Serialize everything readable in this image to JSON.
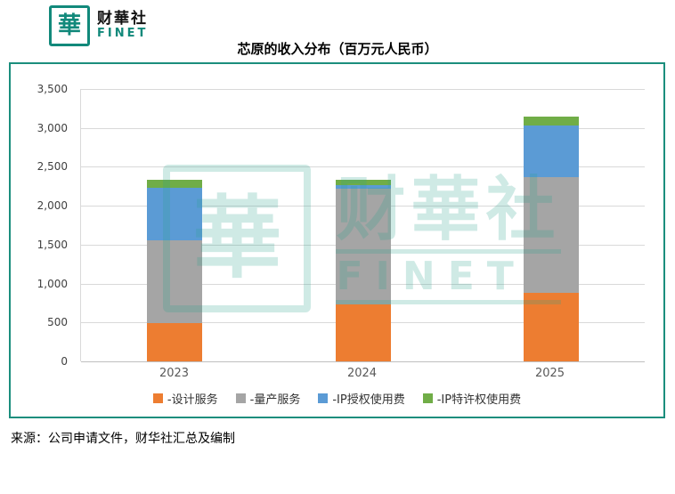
{
  "logo": {
    "glyph": "華",
    "name_cn": "财華社",
    "name_en": "FINET"
  },
  "title": "芯原的收入分布（百万元人民币）",
  "source": "来源：公司申请文件，财华社汇总及编制",
  "watermark": {
    "glyph": "華",
    "line_cn": "财華社",
    "line_en": "FINET"
  },
  "colors": {
    "brand": "#12897B",
    "frame_border": "#1b8e7d",
    "orange": "#ED7D31",
    "gray": "#A5A5A5",
    "blue": "#5B9BD5",
    "green": "#70AD47"
  },
  "chart_data": {
    "type": "bar",
    "stacked": true,
    "title": "芯原的收入分布（百万元人民币）",
    "categories": [
      "2023",
      "2024",
      "2025"
    ],
    "series": [
      {
        "name": "-设计服务",
        "color": "#ED7D31",
        "values": [
          490,
          730,
          880
        ]
      },
      {
        "name": "-量产服务",
        "color": "#A5A5A5",
        "values": [
          1070,
          1490,
          1490
        ]
      },
      {
        "name": "-IP授权使用费",
        "color": "#5B9BD5",
        "values": [
          670,
          50,
          660
        ]
      },
      {
        "name": "-IP特许权使用费",
        "color": "#70AD47",
        "values": [
          100,
          60,
          110
        ]
      }
    ],
    "totals": [
      2330,
      2330,
      3140
    ],
    "xlabel": "",
    "ylabel": "",
    "ylim": [
      0,
      3500
    ],
    "ytick_step": 500,
    "ytick_labels": [
      "0",
      "500",
      "1,000",
      "1,500",
      "2,000",
      "2,500",
      "3,000",
      "3,500"
    ],
    "grid": true,
    "legend_position": "bottom"
  }
}
